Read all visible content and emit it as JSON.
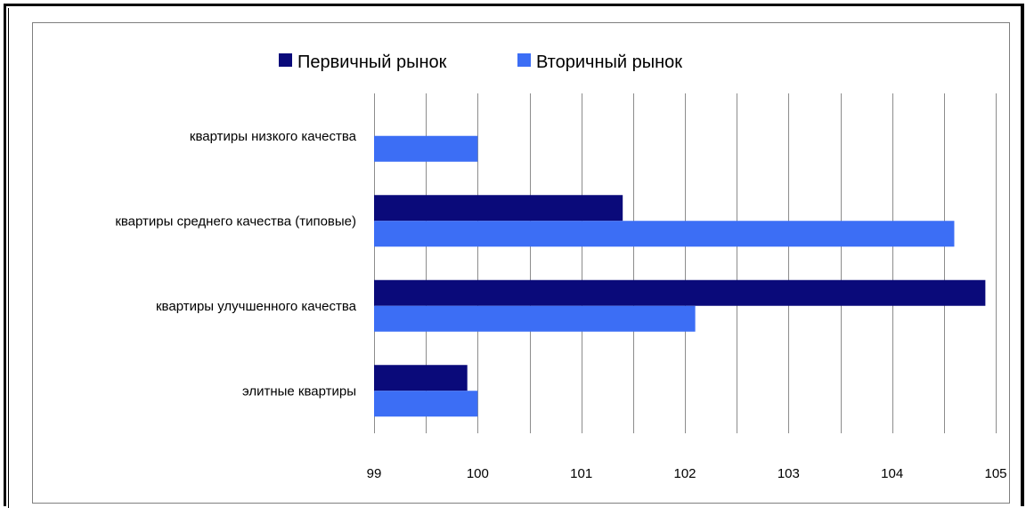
{
  "chart_data": {
    "type": "bar",
    "orientation": "horizontal",
    "categories": [
      "квартиры низкого качества",
      "квартиры среднего качества (типовые)",
      "квартиры улучшенного качества",
      "элитные квартиры"
    ],
    "series": [
      {
        "name": "Первичный рынок",
        "color": "#0a0a7a",
        "values": [
          null,
          101.4,
          104.9,
          99.9
        ]
      },
      {
        "name": "Вторичный рынок",
        "color": "#3c6ef5",
        "values": [
          100.0,
          104.6,
          102.1,
          100.0
        ]
      }
    ],
    "xlim": [
      99,
      105
    ],
    "xticks": [
      "99",
      "100",
      "101",
      "102",
      "103",
      "104",
      "105"
    ],
    "grid": true,
    "legend": "top-center"
  }
}
